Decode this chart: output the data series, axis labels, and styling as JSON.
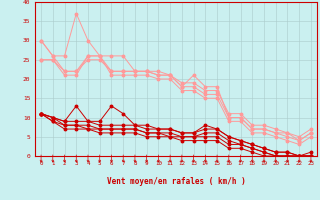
{
  "bg_color": "#caf0f0",
  "grid_color": "#aacccc",
  "xlabel": "Vent moyen/en rafales ( km/h )",
  "xlabel_color": "#cc0000",
  "tick_color": "#cc0000",
  "xlim": [
    -0.5,
    23.5
  ],
  "ylim": [
    0,
    40
  ],
  "yticks": [
    0,
    5,
    10,
    15,
    20,
    25,
    30,
    35,
    40
  ],
  "xticks": [
    0,
    1,
    2,
    3,
    4,
    5,
    6,
    7,
    8,
    9,
    10,
    11,
    12,
    13,
    14,
    15,
    16,
    17,
    18,
    19,
    20,
    21,
    22,
    23
  ],
  "lines_light": [
    {
      "x": [
        0,
        1,
        2,
        3,
        4,
        5,
        6,
        7,
        8,
        9,
        10,
        11,
        12,
        13,
        14,
        15,
        16,
        17,
        18,
        19,
        20,
        21,
        22,
        23
      ],
      "y": [
        30,
        26,
        26,
        37,
        30,
        26,
        26,
        26,
        22,
        22,
        22,
        21,
        18,
        21,
        18,
        18,
        10,
        10,
        7,
        7,
        6,
        6,
        4,
        6
      ]
    },
    {
      "x": [
        0,
        1,
        2,
        3,
        4,
        5,
        6,
        7,
        8,
        9,
        10,
        11,
        12,
        13,
        14,
        15,
        16,
        17,
        18,
        19,
        20,
        21,
        22,
        23
      ],
      "y": [
        30,
        26,
        22,
        22,
        26,
        26,
        22,
        22,
        22,
        22,
        21,
        21,
        18,
        18,
        16,
        16,
        10,
        10,
        7,
        7,
        6,
        5,
        4,
        6
      ]
    },
    {
      "x": [
        0,
        1,
        2,
        3,
        4,
        5,
        6,
        7,
        8,
        9,
        10,
        11,
        12,
        13,
        14,
        15,
        16,
        17,
        18,
        19,
        20,
        21,
        22,
        23
      ],
      "y": [
        25,
        25,
        21,
        21,
        26,
        26,
        21,
        21,
        21,
        21,
        20,
        20,
        17,
        17,
        15,
        15,
        9,
        9,
        6,
        6,
        5,
        4,
        3,
        5
      ]
    },
    {
      "x": [
        0,
        1,
        2,
        3,
        4,
        5,
        6,
        7,
        8,
        9,
        10,
        11,
        12,
        13,
        14,
        15,
        16,
        17,
        18,
        19,
        20,
        21,
        22,
        23
      ],
      "y": [
        25,
        25,
        22,
        22,
        25,
        25,
        22,
        22,
        22,
        22,
        21,
        21,
        19,
        19,
        17,
        17,
        11,
        11,
        8,
        8,
        7,
        6,
        5,
        7
      ]
    }
  ],
  "lines_dark": [
    {
      "x": [
        0,
        1,
        2,
        3,
        4,
        5,
        6,
        7,
        8,
        9,
        10,
        11,
        12,
        13,
        14,
        15,
        16,
        17,
        18,
        19,
        20,
        21,
        22,
        23
      ],
      "y": [
        11,
        10,
        9,
        13,
        9,
        9,
        13,
        11,
        8,
        8,
        7,
        7,
        6,
        6,
        8,
        7,
        5,
        4,
        3,
        2,
        1,
        1,
        0,
        1
      ]
    },
    {
      "x": [
        0,
        1,
        2,
        3,
        4,
        5,
        6,
        7,
        8,
        9,
        10,
        11,
        12,
        13,
        14,
        15,
        16,
        17,
        18,
        19,
        20,
        21,
        22,
        23
      ],
      "y": [
        11,
        10,
        9,
        9,
        9,
        8,
        8,
        8,
        8,
        7,
        7,
        7,
        6,
        6,
        7,
        7,
        5,
        4,
        3,
        2,
        1,
        1,
        0,
        0
      ]
    },
    {
      "x": [
        0,
        1,
        2,
        3,
        4,
        5,
        6,
        7,
        8,
        9,
        10,
        11,
        12,
        13,
        14,
        15,
        16,
        17,
        18,
        19,
        20,
        21,
        22,
        23
      ],
      "y": [
        11,
        10,
        8,
        8,
        8,
        7,
        7,
        7,
        7,
        6,
        6,
        6,
        5,
        5,
        6,
        6,
        4,
        3,
        2,
        1,
        0,
        0,
        0,
        0
      ]
    },
    {
      "x": [
        0,
        1,
        2,
        3,
        4,
        5,
        6,
        7,
        8,
        9,
        10,
        11,
        12,
        13,
        14,
        15,
        16,
        17,
        18,
        19,
        20,
        21,
        22,
        23
      ],
      "y": [
        11,
        9,
        8,
        8,
        7,
        7,
        7,
        7,
        7,
        6,
        6,
        5,
        5,
        5,
        5,
        5,
        3,
        3,
        2,
        1,
        0,
        0,
        0,
        0
      ]
    },
    {
      "x": [
        0,
        1,
        2,
        3,
        4,
        5,
        6,
        7,
        8,
        9,
        10,
        11,
        12,
        13,
        14,
        15,
        16,
        17,
        18,
        19,
        20,
        21,
        22,
        23
      ],
      "y": [
        11,
        9,
        7,
        7,
        7,
        6,
        6,
        6,
        6,
        5,
        5,
        5,
        4,
        4,
        4,
        4,
        2,
        2,
        1,
        0,
        0,
        0,
        0,
        0
      ]
    }
  ],
  "light_color": "#ff9999",
  "dark_color": "#cc0000",
  "marker_size": 1.8,
  "linewidth": 0.7
}
